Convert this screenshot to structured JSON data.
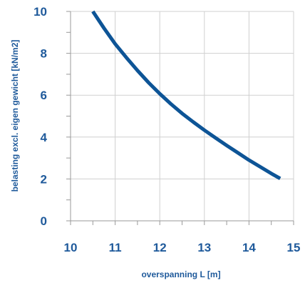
{
  "chart_data": {
    "type": "line",
    "title": "",
    "xlabel": "overspanning L [m]",
    "ylabel": "belasting excl. eigen gewicht [kN/m2]",
    "xlim": [
      10,
      15
    ],
    "ylim": [
      0,
      10
    ],
    "x_ticks": [
      "10",
      "11",
      "12",
      "13",
      "14",
      "15"
    ],
    "y_ticks": [
      "0",
      "2",
      "4",
      "6",
      "8",
      "10"
    ],
    "grid": true,
    "legend": "none",
    "series": [
      {
        "x": [
          10.5,
          10.75,
          11.0,
          11.25,
          11.5,
          11.75,
          12.0,
          12.25,
          12.5,
          12.75,
          13.0,
          13.25,
          13.5,
          13.75,
          14.0,
          14.25,
          14.5,
          14.7
        ],
        "values": [
          10.0,
          9.2,
          8.45,
          7.8,
          7.18,
          6.6,
          6.07,
          5.58,
          5.13,
          4.72,
          4.33,
          3.96,
          3.6,
          3.25,
          2.9,
          2.58,
          2.26,
          2.02
        ]
      }
    ],
    "colors": {
      "line": "#0d5496",
      "labels": "#1f5a9b",
      "grid": "#d0d0d0",
      "axis": "#9a9a9a"
    }
  }
}
